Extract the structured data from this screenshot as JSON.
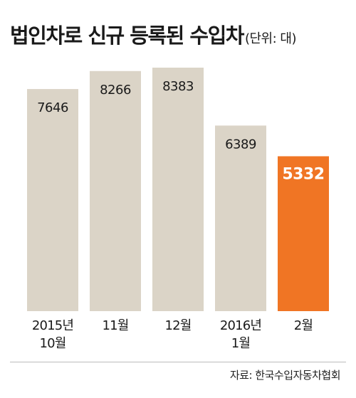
{
  "title": "법인차로 신규 등록된 수입차",
  "unit": "(단위: 대)",
  "source": "자료: 한국수입자동차협회",
  "colors": {
    "bar": "#dbd4c7",
    "highlight": "#f07524",
    "label": "#1a1a1a",
    "highlight_label": "#ffffff"
  },
  "chart_data": {
    "type": "bar",
    "categories": [
      [
        "2015년",
        "10월"
      ],
      [
        "11월"
      ],
      [
        "12월"
      ],
      [
        "2016년",
        "1월"
      ],
      [
        "2월"
      ]
    ],
    "values": [
      7646,
      8266,
      8383,
      6389,
      5332
    ],
    "highlight_index": 4,
    "ylim": [
      0,
      8383
    ],
    "grid": false,
    "legend": "none"
  }
}
